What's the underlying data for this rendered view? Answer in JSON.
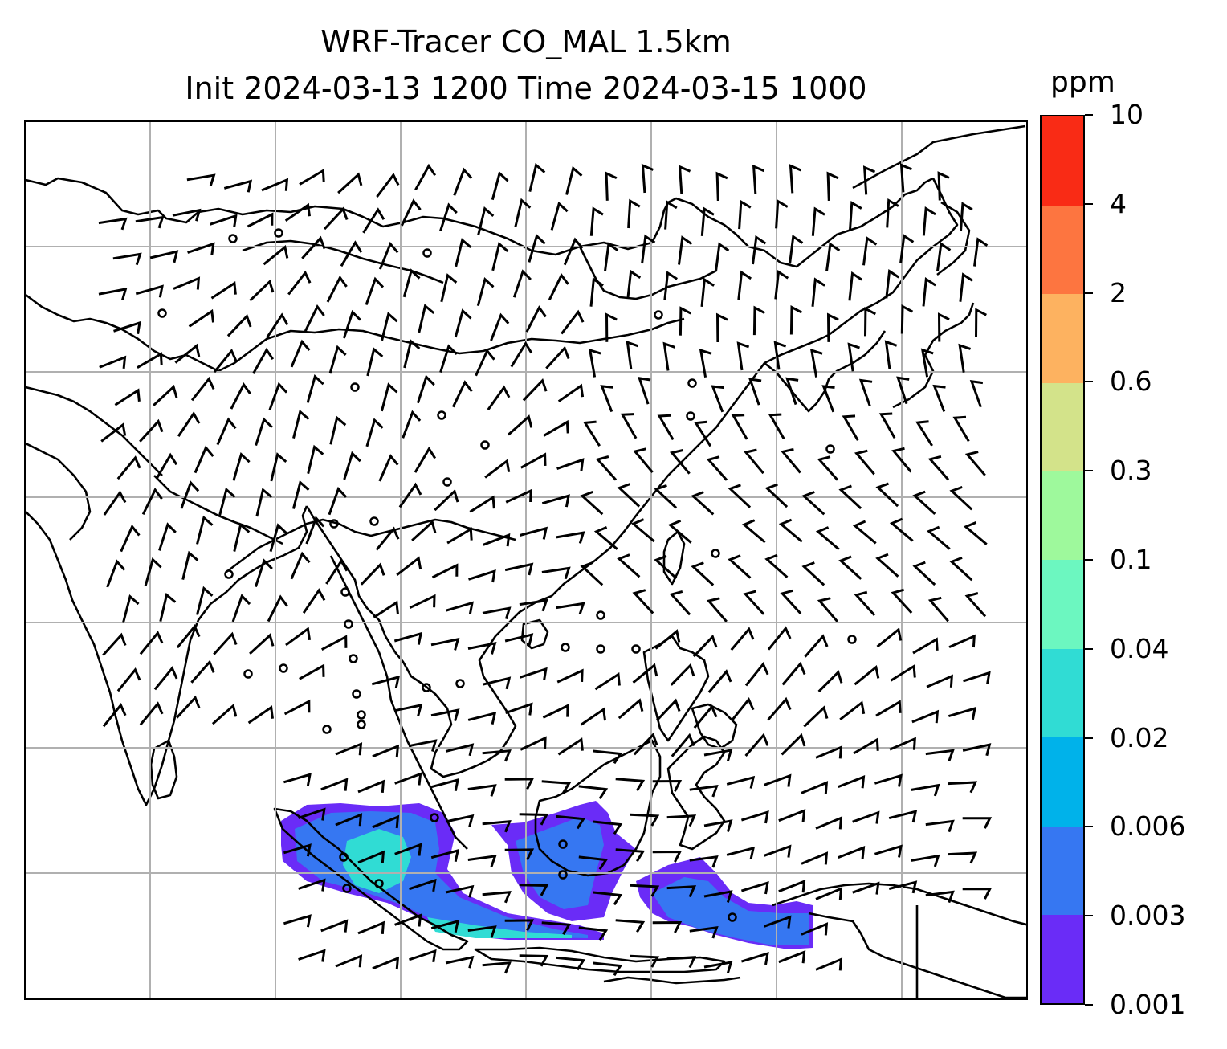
{
  "title": {
    "line1": "WRF-Tracer CO_MAL 1.5km",
    "line2": "Init 2024-03-13 1200 Time 2024-03-15 1000"
  },
  "colorbar": {
    "unit": "ppm",
    "labels": [
      "0.001",
      "0.003",
      "0.006",
      "0.02",
      "0.04",
      "0.1",
      "0.3",
      "0.6",
      "2",
      "4",
      "10"
    ],
    "colors": [
      "#6a2cf7",
      "#3677f2",
      "#00b2ea",
      "#30dcd4",
      "#6cf7c0",
      "#9ef99c",
      "#d3e38a",
      "#fdb260",
      "#fd7540",
      "#f92b15"
    ]
  },
  "map": {
    "gridline_color": "#b0b0b0",
    "coastline_color": "#000000",
    "tracer_field": "CO_MAL",
    "plume_colors": [
      "#6a2cf7",
      "#3677f2",
      "#30dcd4"
    ]
  }
}
